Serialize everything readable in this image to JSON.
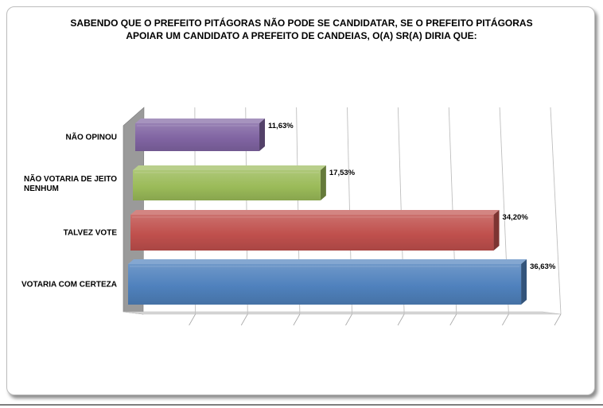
{
  "chart_data": {
    "type": "bar",
    "orientation": "horizontal",
    "title_lines": [
      "SABENDO QUE O PREFEITO PITÁGORAS NÃO PODE SE CANDIDATAR, SE O PREFEITO PITÁGORAS",
      "APOIAR UM CANDIDATO A PREFEITO DE CANDEIAS, O(A) SR(A) DIRIA QUE:"
    ],
    "categories": [
      [
        "NÃO OPINOU"
      ],
      [
        "NÃO VOTARIA DE JEITO",
        "NENHUM"
      ],
      [
        "TALVEZ VOTE"
      ],
      [
        "VOTARIA COM CERTEZA"
      ]
    ],
    "values": [
      11.63,
      17.53,
      34.2,
      36.63
    ],
    "value_labels": [
      "11,63%",
      "17,53%",
      "34,20%",
      "36,63%"
    ],
    "colors": [
      "#8064a2",
      "#9bbb59",
      "#c0504d",
      "#4f81bd"
    ],
    "xlim": [
      0,
      40
    ],
    "grid": true,
    "style": "3d-perspective"
  }
}
